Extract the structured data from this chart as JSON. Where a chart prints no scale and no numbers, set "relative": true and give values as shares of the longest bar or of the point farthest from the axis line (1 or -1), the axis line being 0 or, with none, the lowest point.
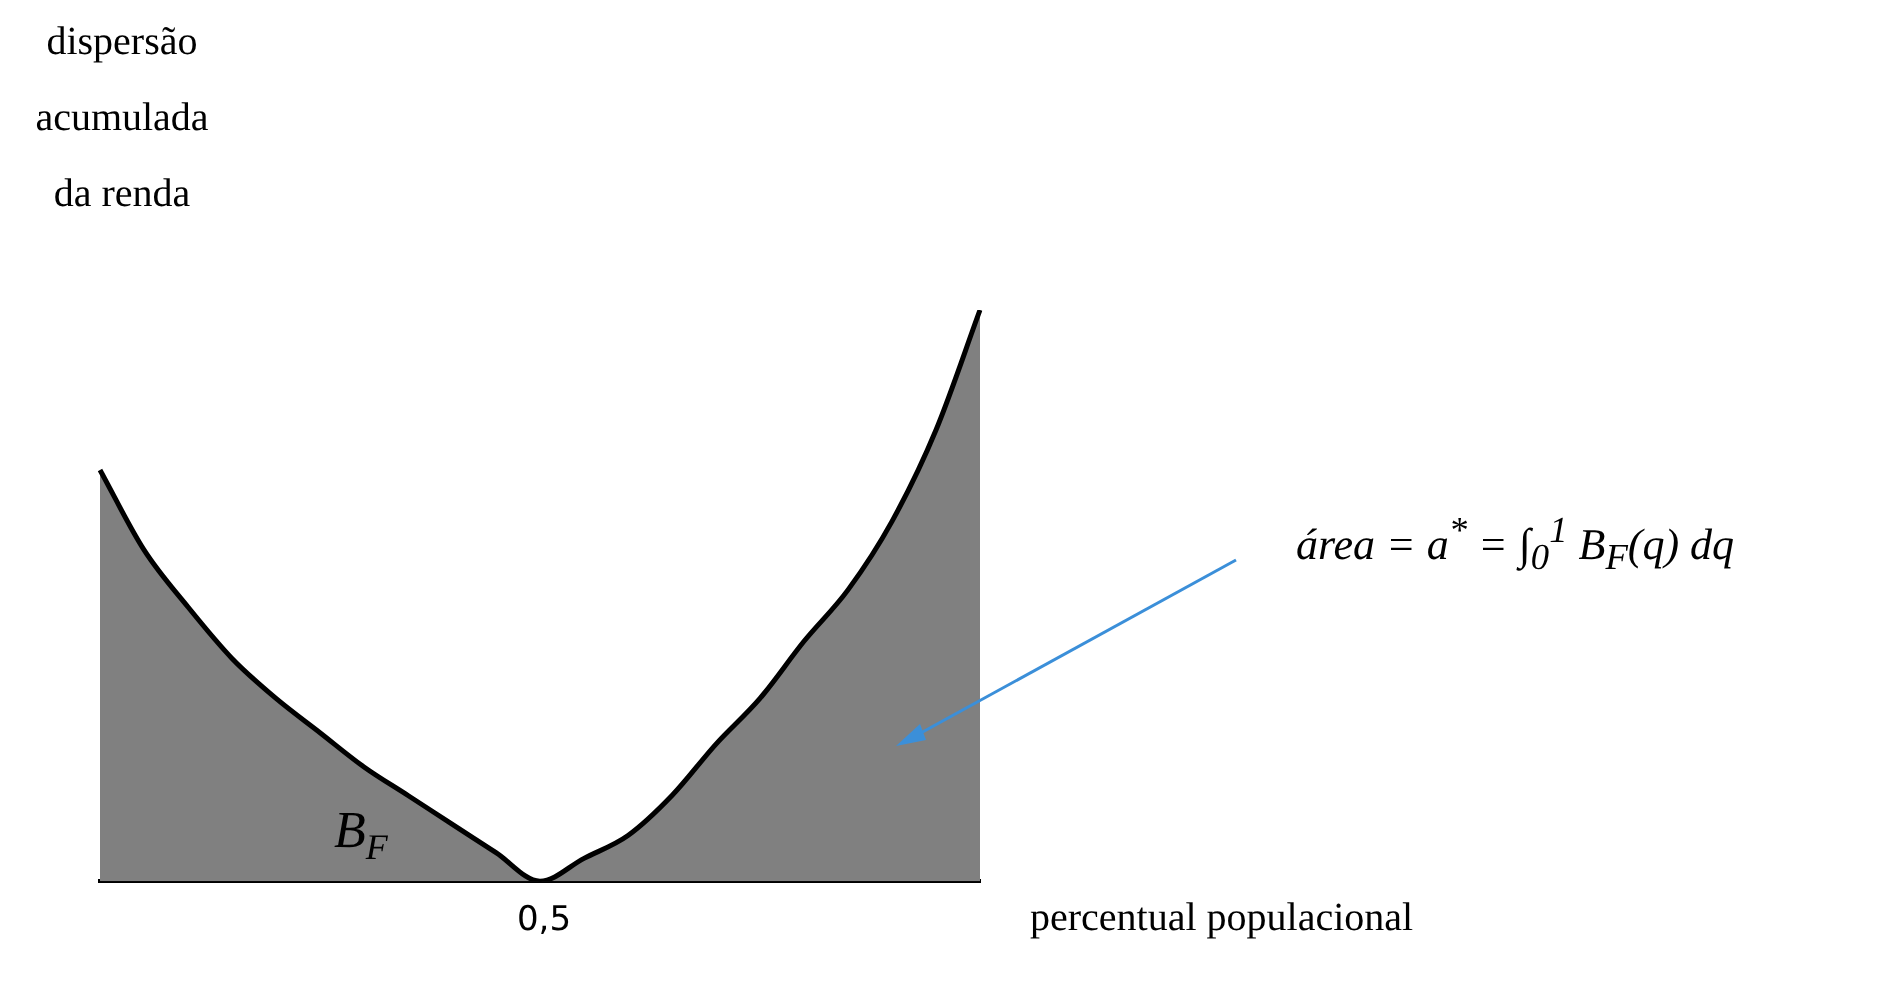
{
  "chart_data": {
    "type": "area",
    "relative": true,
    "ylabel": "dispersão acumulada da renda",
    "xlabel": "percentual populacional",
    "categories": [
      null,
      null,
      null,
      null,
      null,
      null,
      null,
      null,
      null,
      null,
      null,
      null,
      null,
      null,
      null,
      null,
      null,
      null,
      null,
      null,
      null
    ],
    "series": [
      {
        "name": "B$_{F}$",
        "color": "#808080",
        "values": [
          0.72,
          0.58,
          0.48,
          0.39,
          0.32,
          0.26,
          0.2,
          0.15,
          0.1,
          0.05,
          0,
          0.04,
          0.08,
          0.15,
          0.24,
          0.32,
          0.42,
          0.51,
          0.63,
          0.79,
          1
        ]
      }
    ],
    "annotations": [
      "área = a$^{*}$ = ∫$_{0}$$^{1}$ B$_{F}$(q) dq",
      "0,5"
    ],
    "grid": false,
    "legend": false
  }
}
